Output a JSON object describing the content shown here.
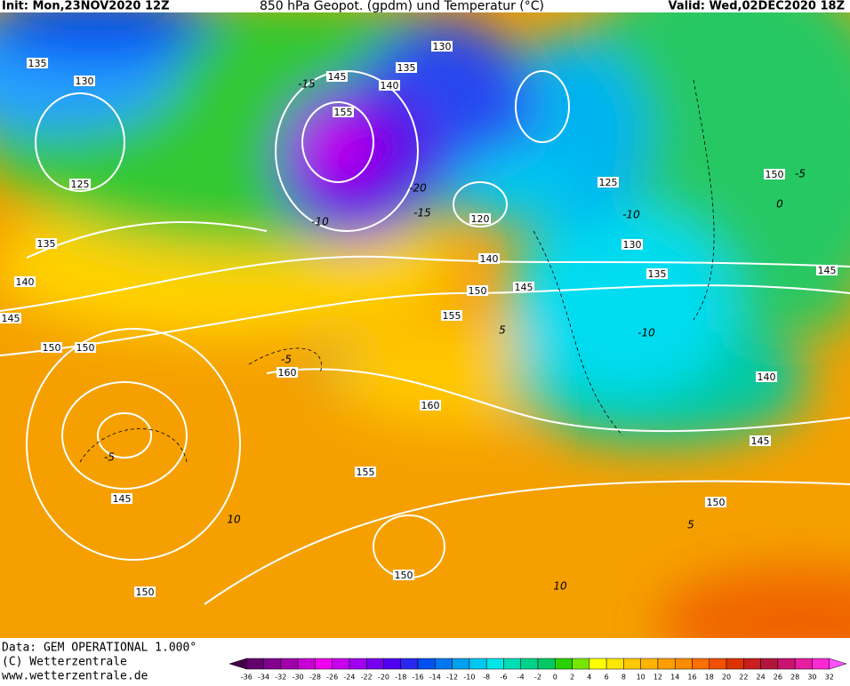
{
  "header": {
    "init": "Init: Mon,23NOV2020 12Z",
    "title": "850 hPa Geopot. (gpdm) und Temperatur (°C)",
    "valid": "Valid: Wed,02DEC2020 18Z"
  },
  "footer": {
    "source": "Data: GEM OPERATIONAL 1.000°",
    "copyright": "(C) Wetterzentrale",
    "url": "www.wetterzentrale.de"
  },
  "geopotential_labels": [
    130,
    135,
    125,
    135,
    140,
    145,
    150,
    150,
    160,
    160,
    155,
    145,
    150,
    150,
    130,
    135,
    145,
    140,
    155,
    120,
    140,
    150,
    145,
    155,
    125,
    130,
    135,
    150,
    145,
    140,
    145,
    150
  ],
  "temperature_labels": [
    -10,
    -15,
    -10,
    -10,
    -5,
    -5,
    10,
    10,
    5,
    -5,
    0,
    5,
    -15,
    -20
  ],
  "color_scale": {
    "labels": [
      -36,
      -34,
      -32,
      -30,
      -28,
      -26,
      -24,
      -22,
      -20,
      -18,
      -16,
      -14,
      -12,
      -10,
      -8,
      -6,
      -4,
      -2,
      0,
      2,
      4,
      6,
      8,
      10,
      12,
      14,
      16,
      18,
      20,
      22,
      24,
      26,
      28,
      30,
      32
    ],
    "colors": [
      "#46004b",
      "#64006e",
      "#82008c",
      "#a000aa",
      "#c800d2",
      "#f000f0",
      "#c800f0",
      "#a000f0",
      "#7800f0",
      "#5000f0",
      "#2828f0",
      "#0050f0",
      "#0078f0",
      "#00a0f0",
      "#00c8f0",
      "#00e6e6",
      "#00dcb4",
      "#00d28c",
      "#00c864",
      "#28d200",
      "#78e600",
      "#ffff00",
      "#ffe600",
      "#ffc800",
      "#ffb400",
      "#ffa000",
      "#ff8c00",
      "#ff6e00",
      "#f05000",
      "#dc3200",
      "#c81e1e",
      "#b4143c",
      "#c8146e",
      "#e61ea0",
      "#ff28d2",
      "#ff50ff"
    ]
  }
}
